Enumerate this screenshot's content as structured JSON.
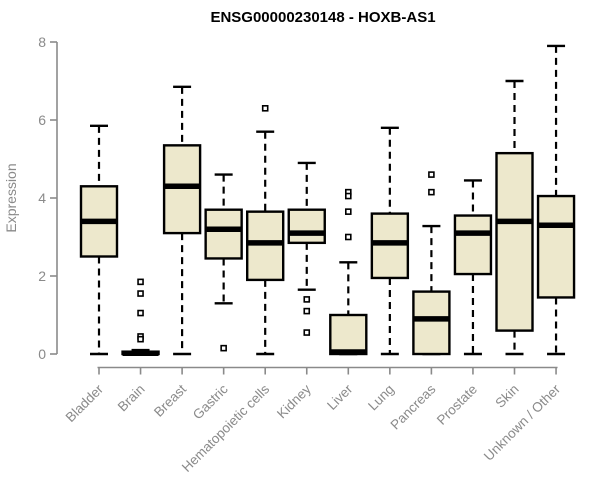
{
  "title": "ENSG00000230148 - HOXB-AS1",
  "chart_data": {
    "type": "boxplot",
    "title": "ENSG00000230148 - HOXB-AS1",
    "xlabel": "",
    "ylabel": "Expression",
    "ylim": [
      0,
      8
    ],
    "yticks": [
      "0",
      "2",
      "4",
      "6",
      "8"
    ],
    "ytick_values": [
      0,
      2,
      4,
      6,
      8
    ],
    "grid": "off",
    "legend": "none",
    "categories": [
      "Bladder",
      "Brain",
      "Breast",
      "Gastric",
      "Hematopoietic cells",
      "Kidney",
      "Liver",
      "Lung",
      "Pancreas",
      "Prostate",
      "Skin",
      "Unknown / Other"
    ],
    "series": [
      {
        "category": "Bladder",
        "whisker_low": 0,
        "q1": 2.5,
        "median": 3.4,
        "q3": 4.3,
        "whisker_high": 5.85,
        "outliers": []
      },
      {
        "category": "Brain",
        "whisker_low": 0,
        "q1": 0,
        "median": 0.02,
        "q3": 0.06,
        "whisker_high": 0.1,
        "outliers": [
          1.85,
          1.55,
          1.05,
          0.45,
          0.38
        ]
      },
      {
        "category": "Breast",
        "whisker_low": 0,
        "q1": 3.1,
        "median": 4.3,
        "q3": 5.35,
        "whisker_high": 6.85,
        "outliers": []
      },
      {
        "category": "Gastric",
        "whisker_low": 1.3,
        "q1": 2.45,
        "median": 3.2,
        "q3": 3.7,
        "whisker_high": 4.6,
        "outliers": [
          0.15
        ]
      },
      {
        "category": "Hematopoietic cells",
        "whisker_low": 0,
        "q1": 1.9,
        "median": 2.85,
        "q3": 3.65,
        "whisker_high": 5.7,
        "outliers": [
          6.3
        ]
      },
      {
        "category": "Kidney",
        "whisker_low": 1.65,
        "q1": 2.85,
        "median": 3.1,
        "q3": 3.7,
        "whisker_high": 4.9,
        "outliers": [
          1.4,
          1.1,
          0.55
        ]
      },
      {
        "category": "Liver",
        "whisker_low": 0,
        "q1": 0,
        "median": 0.05,
        "q3": 1.0,
        "whisker_high": 2.35,
        "outliers": [
          4.15,
          4.05,
          3.65,
          3.0
        ]
      },
      {
        "category": "Lung",
        "whisker_low": 0,
        "q1": 1.95,
        "median": 2.85,
        "q3": 3.6,
        "whisker_high": 5.8,
        "outliers": []
      },
      {
        "category": "Pancreas",
        "whisker_low": 0,
        "q1": 0,
        "median": 0.9,
        "q3": 1.6,
        "whisker_high": 3.28,
        "outliers": [
          4.6,
          4.15
        ]
      },
      {
        "category": "Prostate",
        "whisker_low": 0,
        "q1": 2.05,
        "median": 3.1,
        "q3": 3.55,
        "whisker_high": 4.45,
        "outliers": []
      },
      {
        "category": "Skin",
        "whisker_low": 0,
        "q1": 0.6,
        "median": 3.4,
        "q3": 5.15,
        "whisker_high": 7.0,
        "outliers": []
      },
      {
        "category": "Unknown / Other",
        "whisker_low": 0,
        "q1": 1.45,
        "median": 3.3,
        "q3": 4.05,
        "whisker_high": 7.9,
        "outliers": []
      }
    ],
    "colors": {
      "box_fill": "#ede8cc",
      "box_border": "#000000",
      "median": "#000000",
      "whisker": "#000000",
      "outlier_fill": "#ffffff",
      "axis": "#8a8a8a",
      "title": "#000000"
    }
  }
}
